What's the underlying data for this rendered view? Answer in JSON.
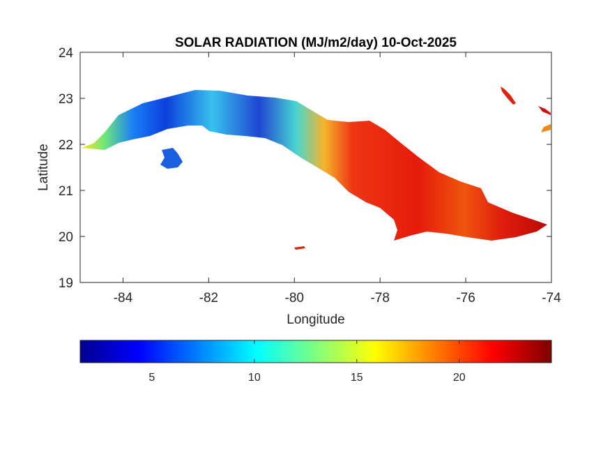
{
  "title": "SOLAR RADIATION (MJ/m2/day) 10-Oct-2025",
  "axes": {
    "xlabel": "Longitude",
    "ylabel": "Latitude",
    "xlim": [
      -85,
      -74
    ],
    "ylim": [
      19,
      24
    ],
    "xticks": [
      -84,
      -82,
      -80,
      -78,
      -76,
      -74
    ],
    "yticks": [
      19,
      20,
      21,
      22,
      23,
      24
    ],
    "xtick_labels": [
      "-84",
      "-82",
      "-80",
      "-78",
      "-76",
      "-74"
    ],
    "ytick_labels": [
      "19",
      "20",
      "21",
      "22",
      "23",
      "24"
    ]
  },
  "colorbar": {
    "colormap": "jet",
    "range": [
      1.5,
      24.5
    ],
    "ticks": [
      5,
      10,
      15,
      20
    ],
    "tick_labels": [
      "5",
      "10",
      "15",
      "20"
    ],
    "orientation": "horizontal",
    "placement": "bottom"
  },
  "chart_data": {
    "type": "heatmap",
    "title": "SOLAR RADIATION (MJ/m2/day) 10-Oct-2025",
    "xlabel": "Longitude",
    "ylabel": "Latitude",
    "xlim": [
      -85,
      -74
    ],
    "ylim": [
      19,
      24
    ],
    "colormap": "jet",
    "clim": [
      1.5,
      24.5
    ],
    "grid": false,
    "regions": [
      {
        "name": "",
        "lon_range": [
          -85.0,
          -83.5
        ],
        "value_approx": 12
      },
      {
        "name": "",
        "lon_range": [
          -83.5,
          -80.0
        ],
        "value_approx": 6
      },
      {
        "name": "",
        "lon_range": [
          -83.2,
          -82.8
        ],
        "value_approx": 5
      },
      {
        "name": "",
        "lon_range": [
          -80.0,
          -79.3
        ],
        "value_approx": 16
      },
      {
        "name": "",
        "lon_range": [
          -79.3,
          -74.2
        ],
        "value_approx": 21
      }
    ]
  }
}
